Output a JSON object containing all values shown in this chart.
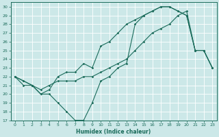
{
  "xlabel": "Humidex (Indice chaleur)",
  "xlim": [
    -0.5,
    23.5
  ],
  "ylim": [
    17,
    30.5
  ],
  "yticks": [
    17,
    18,
    19,
    20,
    21,
    22,
    23,
    24,
    25,
    26,
    27,
    28,
    29,
    30
  ],
  "xticks": [
    0,
    1,
    2,
    3,
    4,
    5,
    6,
    7,
    8,
    9,
    10,
    11,
    12,
    13,
    14,
    15,
    16,
    17,
    18,
    19,
    20,
    21,
    22,
    23
  ],
  "bg_color": "#cce8e8",
  "grid_color": "#b0d8d8",
  "line_color": "#1a6b5a",
  "line1_x": [
    0,
    1,
    2,
    3,
    4,
    5,
    6,
    7,
    8,
    9,
    10,
    11,
    12,
    13,
    14,
    15,
    16,
    17,
    18,
    19,
    20,
    21,
    22,
    23
  ],
  "line1_y": [
    22,
    21,
    21,
    20,
    20,
    19,
    18,
    17,
    17,
    19,
    21.5,
    22,
    23,
    23.5,
    28,
    29,
    29.5,
    30,
    30,
    29.5,
    29,
    25,
    25,
    23
  ],
  "line2_x": [
    0,
    1,
    2,
    3,
    4,
    5,
    6,
    7,
    8,
    9,
    10,
    11,
    12,
    13,
    14,
    15,
    16,
    17,
    18,
    19,
    20,
    21,
    22,
    23
  ],
  "line2_y": [
    22,
    21.5,
    21,
    20,
    20.5,
    22,
    22.5,
    22.5,
    23.5,
    23,
    25.5,
    26,
    27,
    28,
    28.5,
    29,
    29.5,
    30,
    30,
    29.5,
    29,
    25,
    25,
    23
  ],
  "line3_x": [
    0,
    1,
    2,
    3,
    4,
    5,
    6,
    7,
    8,
    9,
    10,
    11,
    12,
    13,
    14,
    15,
    16,
    17,
    18,
    19,
    20,
    21,
    22,
    23
  ],
  "line3_y": [
    22,
    21.5,
    21,
    20.5,
    21,
    21.5,
    21.5,
    21.5,
    22,
    22,
    22.5,
    23,
    23.5,
    24,
    25,
    26,
    27,
    27.5,
    28,
    29,
    29.5,
    25,
    25,
    23
  ]
}
